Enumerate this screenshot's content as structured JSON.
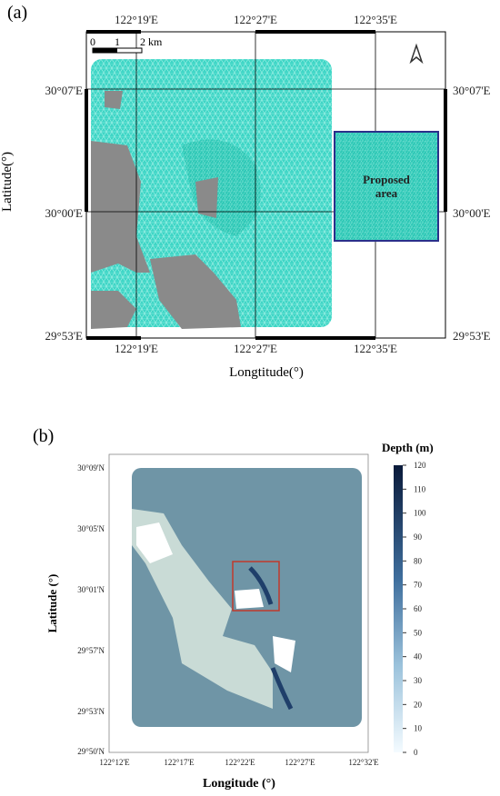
{
  "panel_a": {
    "label": "(a)",
    "x_ticks": [
      "122°19'E",
      "122°27'E",
      "122°35'E"
    ],
    "y_ticks": [
      "30°07'E",
      "30°00'E",
      "29°53'E"
    ],
    "scale_bar": [
      "0",
      "1",
      "2 km"
    ],
    "inset_label": "Proposed area",
    "y_axis_label": "Latitude(°)",
    "x_axis_label": "Longtitude(°)"
  },
  "panel_b": {
    "label": "(b)",
    "x_ticks": [
      "122°12'E",
      "122°17'E",
      "122°22'E",
      "122°27'E",
      "122°32'E"
    ],
    "y_ticks": [
      "30°09'N",
      "30°05'N",
      "30°01'N",
      "29°57'N",
      "29°53'N",
      "29°50'N"
    ],
    "y_axis_label": "Latitude (°)",
    "x_axis_label": "Longitude (°)",
    "colorbar": {
      "title": "Depth (m)",
      "lim": [
        0,
        120
      ],
      "ticks": [
        0,
        10,
        20,
        30,
        40,
        50,
        60,
        70,
        80,
        90,
        100,
        110,
        120
      ]
    }
  }
}
